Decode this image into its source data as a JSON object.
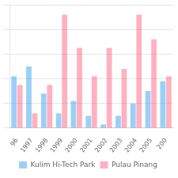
{
  "chart_data": {
    "type": "bar",
    "categories": [
      "96",
      "1997",
      "1998",
      "1999",
      "2000",
      "2001",
      "2002",
      "2003",
      "2004",
      "2005",
      "200"
    ],
    "series": [
      {
        "name": "Kulim Hi-Tech Park",
        "values": [
          42,
          50,
          28,
          12,
          22,
          10,
          3,
          10,
          20,
          30,
          38
        ]
      },
      {
        "name": "Pulau Pinang",
        "values": [
          35,
          12,
          35,
          92,
          65,
          42,
          65,
          48,
          92,
          72,
          42
        ]
      }
    ],
    "ylim": [
      0,
      100
    ],
    "yticks": [
      0,
      20,
      40,
      60,
      80,
      100
    ],
    "grid": true,
    "legend": "bottom",
    "tick_labels": "x"
  }
}
